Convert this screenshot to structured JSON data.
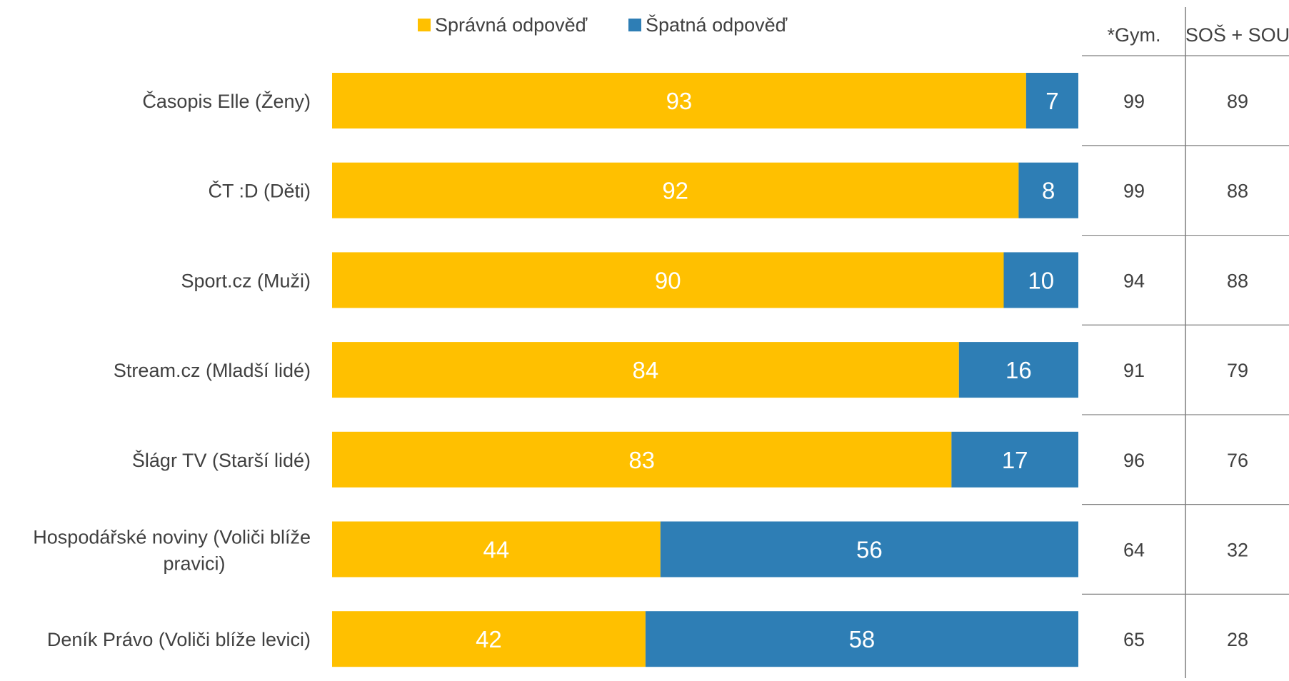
{
  "chart_data": {
    "type": "bar",
    "orientation": "horizontal",
    "stacked": true,
    "percent_scale": [
      0,
      100
    ],
    "legend_position": "top",
    "categories": [
      "Časopis Elle (Ženy)",
      "ČT :D (Děti)",
      "Sport.cz (Muži)",
      "Stream.cz (Mladší lidé)",
      "Šlágr TV (Starší lidé)",
      "Hospodářské noviny (Voliči blíže pravici)",
      "Deník Právo (Voliči blíže levici)"
    ],
    "series": [
      {
        "name": "Správná odpověď",
        "color": "#FFC000",
        "values": [
          93,
          92,
          90,
          84,
          83,
          44,
          42
        ]
      },
      {
        "name": "Špatná odpověď",
        "color": "#2E7EB5",
        "values": [
          7,
          8,
          10,
          16,
          17,
          56,
          58
        ]
      }
    ],
    "side_table": {
      "columns": [
        {
          "header": "*Gym.",
          "values": [
            99,
            99,
            94,
            91,
            96,
            64,
            65
          ]
        },
        {
          "header": "SOŠ + SOU",
          "values": [
            89,
            88,
            88,
            79,
            76,
            32,
            28
          ]
        }
      ]
    }
  }
}
